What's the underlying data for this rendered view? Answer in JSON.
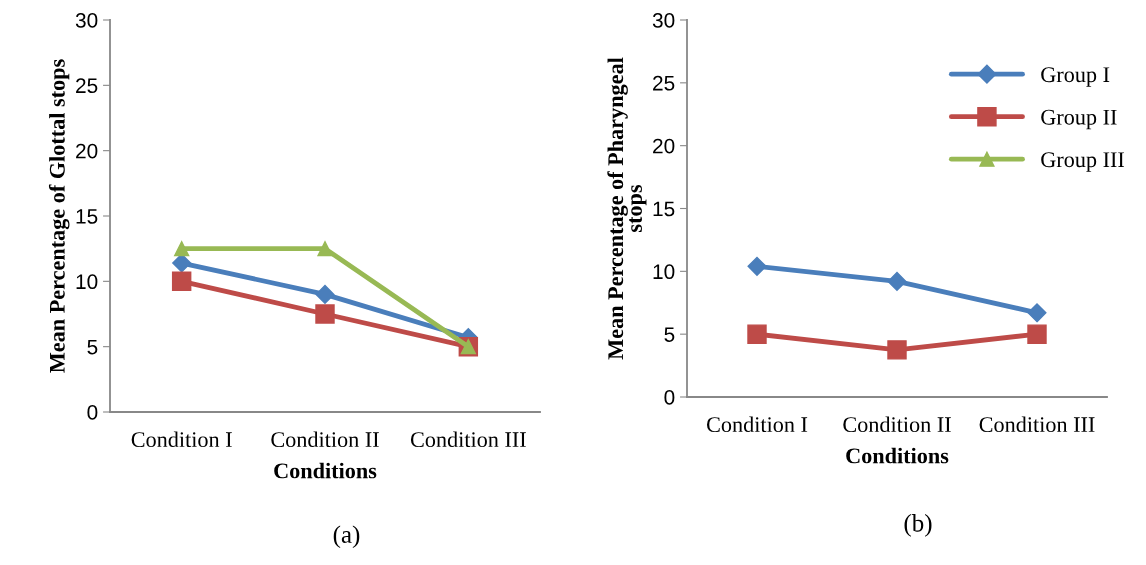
{
  "chart_data": [
    {
      "type": "line",
      "xlabel": "Conditions",
      "ylabel": "Mean Percentage of Glottal stops",
      "categories": [
        "Condition I",
        "Condition II",
        "Condition III"
      ],
      "ylim": [
        0,
        30
      ],
      "yticks": [
        0,
        5,
        10,
        15,
        20,
        25,
        30
      ],
      "grid": false,
      "legend": false,
      "annotations": [
        "(a)"
      ],
      "series": [
        {
          "color": "#4a7ebb",
          "marker": "diamond",
          "values": [
            11.4,
            9.0,
            5.7
          ]
        },
        {
          "color": "#be4b48",
          "marker": "square",
          "values": [
            10,
            7.5,
            5
          ]
        },
        {
          "color": "#98b954",
          "marker": "triangle",
          "values": [
            12.5,
            12.5,
            5
          ]
        }
      ]
    },
    {
      "type": "line",
      "xlabel": "Conditions",
      "ylabel": "Mean Percentage of Pharyngeal\nstops",
      "categories": [
        "Condition I",
        "Condition II",
        "Condition III"
      ],
      "ylim": [
        0,
        30
      ],
      "yticks": [
        0,
        5,
        10,
        15,
        20,
        25,
        30
      ],
      "grid": false,
      "legend": "top right",
      "annotations": [
        "(b)"
      ],
      "series": [
        {
          "name": "Group I",
          "color": "#4a7ebb",
          "marker": "diamond",
          "values": [
            10.4,
            9.2,
            6.7
          ]
        },
        {
          "name": "Group II",
          "color": "#be4b48",
          "marker": "square",
          "values": [
            5,
            3.75,
            5
          ]
        },
        {
          "name": "Group III",
          "color": "#98b954",
          "marker": "triangle",
          "values": [
            null,
            null,
            null
          ]
        }
      ]
    }
  ]
}
